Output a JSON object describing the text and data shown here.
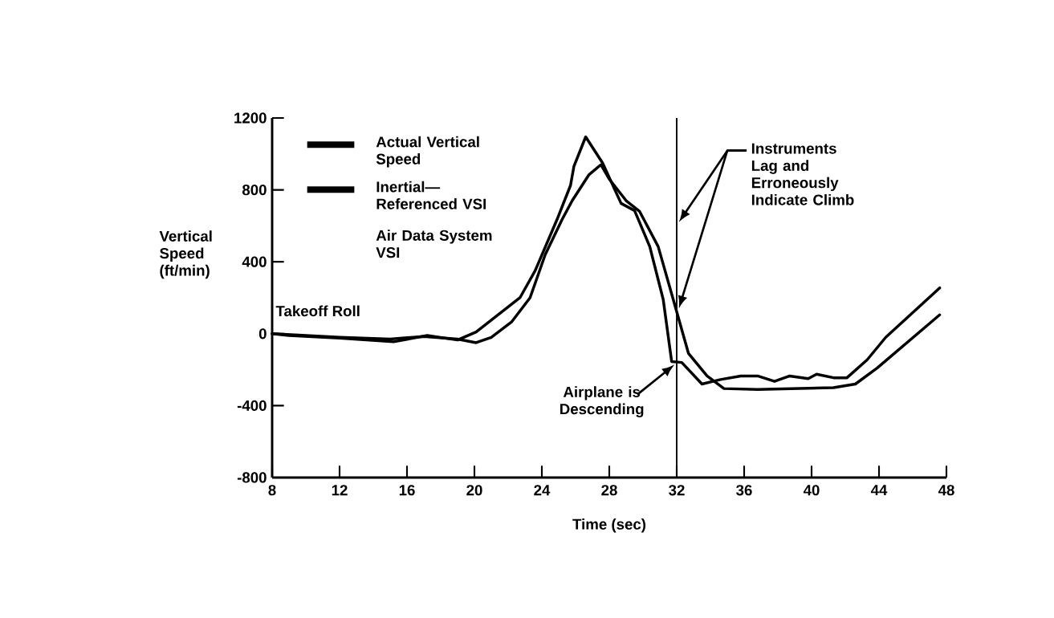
{
  "chart_data": {
    "type": "line",
    "xlabel": "Time (sec)",
    "ylabel": "Vertical Speed (ft/min)",
    "xlim": [
      8,
      48
    ],
    "xticks": [
      8,
      12,
      16,
      20,
      24,
      28,
      32,
      36,
      40,
      44,
      48
    ],
    "ylim": [
      -800,
      1200
    ],
    "yticks": [
      -800,
      -400,
      0,
      400,
      800,
      1200
    ],
    "legend": "top left",
    "marker": "none",
    "line_style": "solid",
    "grid": false,
    "series": [
      {
        "name": "Actual Vertical Speed",
        "color": "#000000",
        "x": [
          8,
          9,
          12,
          15.2,
          17.2,
          19,
          20.1,
          22.7,
          23.6,
          24.9,
          25.7,
          25.9,
          26.6,
          27.6,
          28.7,
          29.5,
          30.4,
          31.2,
          31.7,
          32.3,
          33.5,
          34.6,
          35.8,
          36.8,
          37.8,
          38.7,
          39.8,
          40.3,
          41.3,
          42.1,
          43.3,
          44.4,
          47.6
        ],
        "values": [
          0,
          -10,
          -25,
          -45,
          -10,
          -35,
          10,
          200,
          350,
          635,
          825,
          930,
          1095,
          950,
          725,
          685,
          485,
          190,
          -155,
          -160,
          -280,
          -255,
          -235,
          -235,
          -265,
          -235,
          -250,
          -225,
          -245,
          -245,
          -145,
          -20,
          255
        ]
      },
      {
        "name": "Inertial—Referenced VSI",
        "color": "#000000",
        "x": [
          8,
          12,
          15,
          17,
          19,
          20.1,
          21,
          22.2,
          23.3,
          24.2,
          25.2,
          25.8,
          26.8,
          27.5,
          28,
          29,
          29.8,
          30.9,
          31.9,
          32.7,
          33.8,
          34.8,
          36.8,
          41.3,
          42.6,
          43.9,
          47.6
        ],
        "values": [
          0,
          -20,
          -30,
          -15,
          -30,
          -50,
          -20,
          65,
          200,
          440,
          635,
          740,
          885,
          940,
          860,
          740,
          680,
          485,
          155,
          -110,
          -235,
          -305,
          -310,
          -300,
          -280,
          -190,
          105
        ]
      }
    ],
    "ref_lines": [
      {
        "axis": "x",
        "value": 32,
        "color": "#000000"
      }
    ],
    "annotations": [
      "Air Data System VSI",
      "Takeoff Roll",
      "Instruments Lag and Erroneously Indicate Climb",
      {
        "text": "Airplane is Descending",
        "x": 32,
        "y": -160
      }
    ]
  }
}
